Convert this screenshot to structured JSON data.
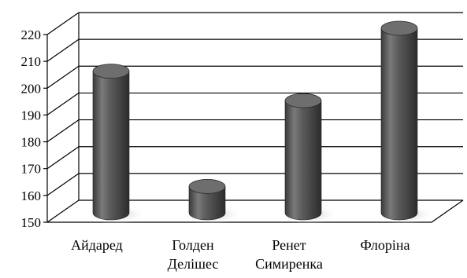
{
  "chart_data": {
    "type": "bar",
    "style": "3d-cylinder",
    "title": "",
    "xlabel": "",
    "ylabel": "",
    "categories": [
      [
        "Айдаред"
      ],
      [
        "Голден",
        "Делішес"
      ],
      [
        "Ренет",
        "Симиренка"
      ],
      [
        "Флоріна"
      ]
    ],
    "values": [
      204,
      161,
      193,
      220
    ],
    "ylim": [
      150,
      220
    ],
    "yticks": [
      "150",
      "160",
      "170",
      "180",
      "190",
      "200",
      "210",
      "220"
    ],
    "grid": true,
    "legend": "none",
    "colors": {
      "bar_body": "#595959",
      "bar_top": "#6e6e6e",
      "bar_highlight": "#9a9a9a",
      "grid": "#000000"
    }
  }
}
